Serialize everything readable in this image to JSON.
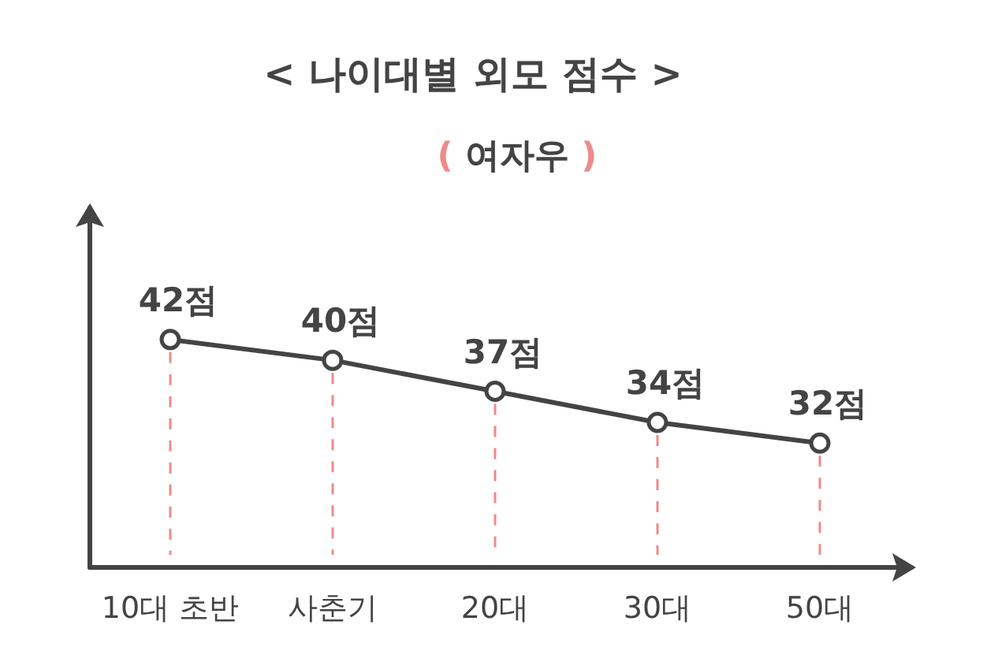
{
  "chart_data": {
    "type": "line",
    "title": "< 나이대별  외모 점수 >",
    "subtitle": "( 여자우 )",
    "categories": [
      "10대 초반",
      "사춘기",
      "20대",
      "30대",
      "50대"
    ],
    "values": [
      42,
      40,
      37,
      34,
      32
    ],
    "value_labels": [
      "42점",
      "40점",
      "37점",
      "34점",
      "32점"
    ],
    "color": "#444444",
    "marker": "circle",
    "line_style": "solid",
    "ylim": [
      20,
      55
    ]
  }
}
